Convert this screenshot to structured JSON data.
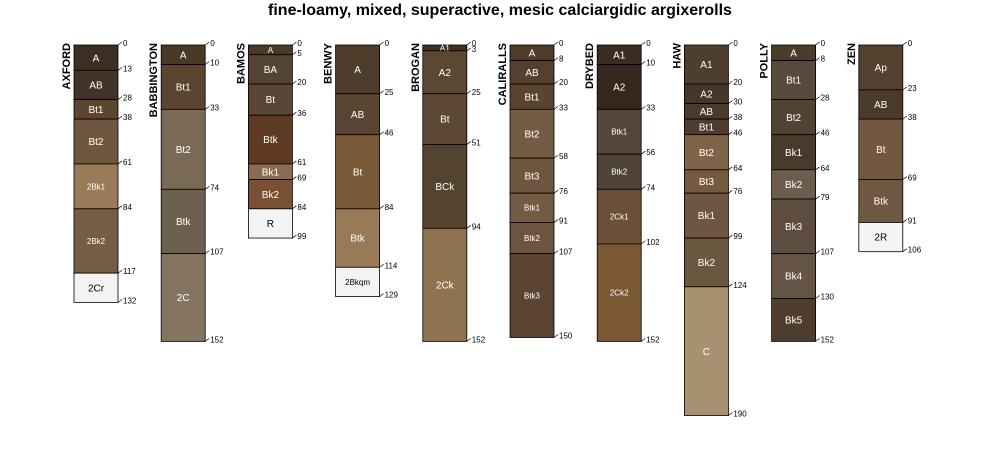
{
  "title": "fine-loamy, mixed, superactive, mesic calciargidic argixerolls",
  "chart_data": {
    "type": "soil-profile-sketch",
    "depth_unit": "cm",
    "profiles": [
      {
        "name": "AXFORD",
        "horizons": [
          {
            "label": "A",
            "top": 0,
            "bottom": 13,
            "color": "#3b2e22"
          },
          {
            "label": "AB",
            "top": 13,
            "bottom": 28,
            "color": "#42342a"
          },
          {
            "label": "Bt1",
            "top": 28,
            "bottom": 38,
            "color": "#5c4630"
          },
          {
            "label": "Bt2",
            "top": 38,
            "bottom": 61,
            "color": "#6e5740"
          },
          {
            "label": "2Bk1",
            "top": 61,
            "bottom": 84,
            "color": "#9a7b58"
          },
          {
            "label": "2Bk2",
            "top": 84,
            "bottom": 117,
            "color": "#745c45"
          },
          {
            "label": "2Cr",
            "top": 117,
            "bottom": 132,
            "color": "#f3f3f3"
          }
        ]
      },
      {
        "name": "BABBINGTON",
        "horizons": [
          {
            "label": "A",
            "top": 0,
            "bottom": 10,
            "color": "#4a3826"
          },
          {
            "label": "Bt1",
            "top": 10,
            "bottom": 33,
            "color": "#5c4530"
          },
          {
            "label": "Bt2",
            "top": 33,
            "bottom": 74,
            "color": "#7a6954"
          },
          {
            "label": "Btk",
            "top": 74,
            "bottom": 107,
            "color": "#6e604e"
          },
          {
            "label": "2C",
            "top": 107,
            "bottom": 152,
            "color": "#857460"
          }
        ]
      },
      {
        "name": "BAMOS",
        "horizons": [
          {
            "label": "A",
            "top": 0,
            "bottom": 5,
            "color": "#4a3828"
          },
          {
            "label": "BA",
            "top": 5,
            "bottom": 20,
            "color": "#554333"
          },
          {
            "label": "Bt",
            "top": 20,
            "bottom": 36,
            "color": "#5a4635"
          },
          {
            "label": "Btk",
            "top": 36,
            "bottom": 61,
            "color": "#5e3a22"
          },
          {
            "label": "Bk1",
            "top": 61,
            "bottom": 69,
            "color": "#8a6c55"
          },
          {
            "label": "Bk2",
            "top": 69,
            "bottom": 84,
            "color": "#7a5034"
          },
          {
            "label": "R",
            "top": 84,
            "bottom": 99,
            "color": "#f3f3f3"
          }
        ]
      },
      {
        "name": "BENWY",
        "horizons": [
          {
            "label": "A",
            "top": 0,
            "bottom": 25,
            "color": "#4f3d2b"
          },
          {
            "label": "AB",
            "top": 25,
            "bottom": 46,
            "color": "#5a4532"
          },
          {
            "label": "Bt",
            "top": 46,
            "bottom": 84,
            "color": "#7a5a38"
          },
          {
            "label": "Btk",
            "top": 84,
            "bottom": 114,
            "color": "#987a56"
          },
          {
            "label": "2Bkqm",
            "top": 114,
            "bottom": 129,
            "color": "#f3f3f3"
          }
        ]
      },
      {
        "name": "BROGAN",
        "horizons": [
          {
            "label": "A1",
            "top": 0,
            "bottom": 3,
            "color": "#3e3024"
          },
          {
            "label": "A2",
            "top": 3,
            "bottom": 25,
            "color": "#5c4832"
          },
          {
            "label": "Bt",
            "top": 25,
            "bottom": 51,
            "color": "#5c4834"
          },
          {
            "label": "BCk",
            "top": 51,
            "bottom": 94,
            "color": "#54432e"
          },
          {
            "label": "2Ck",
            "top": 94,
            "bottom": 152,
            "color": "#8f7350"
          }
        ]
      },
      {
        "name": "CALIRALLS",
        "horizons": [
          {
            "label": "A",
            "top": 0,
            "bottom": 8,
            "color": "#4e3b28"
          },
          {
            "label": "AB",
            "top": 8,
            "bottom": 20,
            "color": "#54402c"
          },
          {
            "label": "Bt1",
            "top": 20,
            "bottom": 33,
            "color": "#5a4430"
          },
          {
            "label": "Bt2",
            "top": 33,
            "bottom": 58,
            "color": "#745c42"
          },
          {
            "label": "Bt3",
            "top": 58,
            "bottom": 76,
            "color": "#6e5640"
          },
          {
            "label": "Btk1",
            "top": 76,
            "bottom": 91,
            "color": "#745c44"
          },
          {
            "label": "Btk2",
            "top": 91,
            "bottom": 107,
            "color": "#6b5540"
          },
          {
            "label": "Btk3",
            "top": 107,
            "bottom": 150,
            "color": "#5c4432"
          }
        ]
      },
      {
        "name": "DRYBED",
        "horizons": [
          {
            "label": "A1",
            "top": 0,
            "bottom": 10,
            "color": "#3a2c20"
          },
          {
            "label": "A2",
            "top": 10,
            "bottom": 33,
            "color": "#34281e"
          },
          {
            "label": "Btk1",
            "top": 33,
            "bottom": 56,
            "color": "#54463a"
          },
          {
            "label": "Btk2",
            "top": 56,
            "bottom": 74,
            "color": "#4f4236"
          },
          {
            "label": "2Ck1",
            "top": 74,
            "bottom": 102,
            "color": "#6a5038"
          },
          {
            "label": "2Ck2",
            "top": 102,
            "bottom": 152,
            "color": "#7a5834"
          }
        ]
      },
      {
        "name": "HAW",
        "horizons": [
          {
            "label": "A1",
            "top": 0,
            "bottom": 20,
            "color": "#4e3e30"
          },
          {
            "label": "A2",
            "top": 20,
            "bottom": 30,
            "color": "#45362a"
          },
          {
            "label": "AB",
            "top": 30,
            "bottom": 38,
            "color": "#4a3a2c"
          },
          {
            "label": "Bt1",
            "top": 38,
            "bottom": 46,
            "color": "#4e3c2c"
          },
          {
            "label": "Bt2",
            "top": 46,
            "bottom": 64,
            "color": "#806448"
          },
          {
            "label": "Bt3",
            "top": 64,
            "bottom": 76,
            "color": "#745a40"
          },
          {
            "label": "Bk1",
            "top": 76,
            "bottom": 99,
            "color": "#6e5642"
          },
          {
            "label": "Bk2",
            "top": 99,
            "bottom": 124,
            "color": "#6a573f"
          },
          {
            "label": "C",
            "top": 124,
            "bottom": 190,
            "color": "#a89170"
          }
        ]
      },
      {
        "name": "POLLY",
        "horizons": [
          {
            "label": "A",
            "top": 0,
            "bottom": 8,
            "color": "#4c3b2a"
          },
          {
            "label": "Bt1",
            "top": 8,
            "bottom": 28,
            "color": "#5a4a3c"
          },
          {
            "label": "Bt2",
            "top": 28,
            "bottom": 46,
            "color": "#524232"
          },
          {
            "label": "Bk1",
            "top": 46,
            "bottom": 64,
            "color": "#4a3a2c"
          },
          {
            "label": "Bk2",
            "top": 64,
            "bottom": 79,
            "color": "#6e5c4c"
          },
          {
            "label": "Bk3",
            "top": 79,
            "bottom": 107,
            "color": "#5e4c3e"
          },
          {
            "label": "Bk4",
            "top": 107,
            "bottom": 130,
            "color": "#665444"
          },
          {
            "label": "Bk5",
            "top": 130,
            "bottom": 152,
            "color": "#4e3c2c"
          }
        ]
      },
      {
        "name": "ZEN",
        "horizons": [
          {
            "label": "Ap",
            "top": 0,
            "bottom": 23,
            "color": "#54402e"
          },
          {
            "label": "AB",
            "top": 23,
            "bottom": 38,
            "color": "#4c3a28"
          },
          {
            "label": "Bt",
            "top": 38,
            "bottom": 69,
            "color": "#735840"
          },
          {
            "label": "Btk",
            "top": 69,
            "bottom": 91,
            "color": "#6e5842"
          },
          {
            "label": "2R",
            "top": 91,
            "bottom": 106,
            "color": "#f3f3f3"
          }
        ]
      }
    ]
  }
}
